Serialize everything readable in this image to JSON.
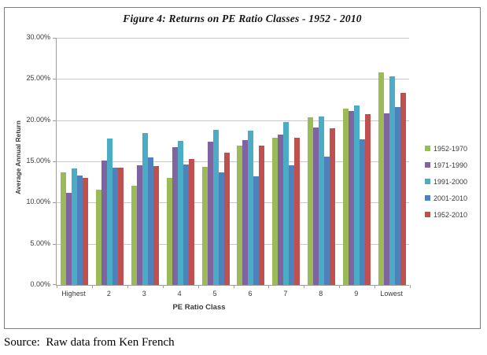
{
  "figure": {
    "source": "Source:  Raw data from Ken French"
  },
  "chart_data": {
    "type": "bar",
    "title": "Figure 4: Returns on PE Ratio Classes - 1952 - 2010",
    "xlabel": "PE Ratio Class",
    "ylabel": "Average Annual Return",
    "ylim": [
      0,
      30
    ],
    "ytick_step": 5,
    "ytick_labels": [
      "0.00%",
      "5.00%",
      "10.00%",
      "15.00%",
      "20.00%",
      "25.00%",
      "30.00%"
    ],
    "grid": true,
    "legend_position": "right",
    "categories": [
      "Highest",
      "2",
      "3",
      "4",
      "5",
      "6",
      "7",
      "8",
      "9",
      "Lowest"
    ],
    "series": [
      {
        "name": "1952-1970",
        "color": "#9BBB59",
        "values": [
          13.7,
          11.6,
          12.1,
          13.0,
          14.4,
          17.0,
          17.9,
          20.4,
          21.5,
          25.9
        ]
      },
      {
        "name": "1971-1990",
        "color": "#8064A2",
        "values": [
          11.2,
          15.1,
          14.6,
          16.8,
          17.4,
          17.6,
          18.3,
          19.2,
          21.2,
          20.9
        ]
      },
      {
        "name": "1991-2000",
        "color": "#4BACC6",
        "values": [
          14.2,
          17.8,
          18.5,
          17.5,
          18.9,
          18.8,
          19.8,
          20.5,
          21.9,
          25.4
        ]
      },
      {
        "name": "2001-2010",
        "color": "#4F81BD",
        "values": [
          13.3,
          14.3,
          15.5,
          14.7,
          13.7,
          13.2,
          14.6,
          15.6,
          17.7,
          21.7
        ]
      },
      {
        "name": "1952-2010",
        "color": "#C0504D",
        "values": [
          13.0,
          14.3,
          14.5,
          15.3,
          16.1,
          17.0,
          17.9,
          19.1,
          20.8,
          23.4
        ]
      }
    ],
    "axis_color": "#9e9e9e",
    "gridline_color": "#c9c9c9"
  }
}
